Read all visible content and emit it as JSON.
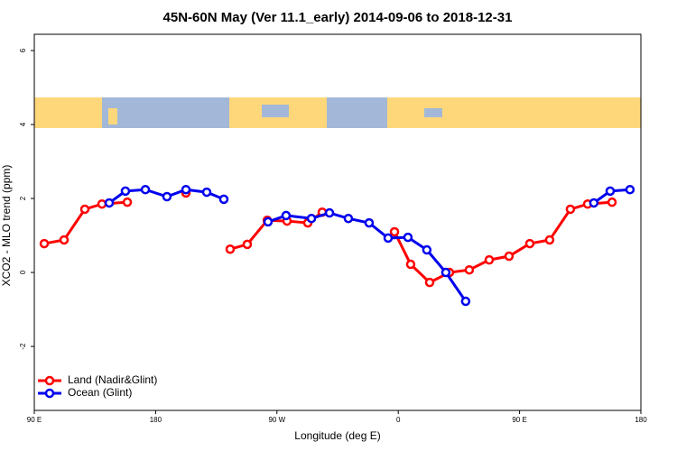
{
  "chart_data": {
    "type": "line",
    "title": "45N-60N May (Ver 11.1_early)   2014-09-06 to 2018-12-31",
    "x_label": "Longitude (deg E)",
    "y_label": "XCO2 - MLO trend (ppm)",
    "xlim": [
      90,
      540
    ],
    "ylim": [
      -3.73,
      6.44
    ],
    "xticks": [
      {
        "value": 90,
        "label": "90 E"
      },
      180,
      {
        "value": 270,
        "label": "90 W"
      },
      {
        "value": 360,
        "label": "0"
      },
      {
        "value": 450,
        "label": "90 E"
      },
      {
        "value": 540,
        "label": "180"
      }
    ],
    "yticks": [
      -2,
      0,
      2,
      4,
      6
    ],
    "legend": "bottom-left",
    "series": [
      {
        "name": "Land (Nadir&Glint)",
        "color": "#ff0000",
        "x": [
          97.4,
          112.1,
          127.5,
          140.2,
          159.0,
          null,
          202.5,
          null,
          235.3,
          248.0,
          262.8,
          277.5,
          292.9,
          303.6,
          null,
          357.2,
          369.2,
          383.3,
          398.0,
          412.7,
          427.5,
          442.2,
          457.6,
          472.3,
          487.7,
          500.5,
          518.6
        ],
        "values": [
          0.78,
          0.88,
          1.71,
          1.85,
          1.9,
          null,
          2.15,
          null,
          0.63,
          0.76,
          1.41,
          1.39,
          1.34,
          1.63,
          null,
          1.1,
          0.22,
          -0.27,
          0,
          0.07,
          0.34,
          0.44,
          0.78,
          0.88,
          1.71,
          1.85,
          1.9
        ]
      },
      {
        "name": "Ocean (Glint)",
        "color": "#0000ee",
        "x": [
          145.6,
          157.6,
          172.4,
          188.4,
          202.5,
          217.9,
          230.6,
          null,
          263.4,
          276.8,
          295.6,
          309.0,
          323.0,
          338.4,
          352.5,
          367.2,
          381.2,
          395.3,
          410.0,
          null,
          505.1,
          517.2,
          531.9
        ],
        "values": [
          1.88,
          2.2,
          2.24,
          2.05,
          2.24,
          2.17,
          1.98,
          null,
          1.37,
          1.54,
          1.46,
          1.61,
          1.46,
          1.34,
          0.93,
          0.95,
          0.61,
          0,
          -0.78,
          null,
          1.88,
          2.2,
          2.24
        ]
      }
    ]
  }
}
